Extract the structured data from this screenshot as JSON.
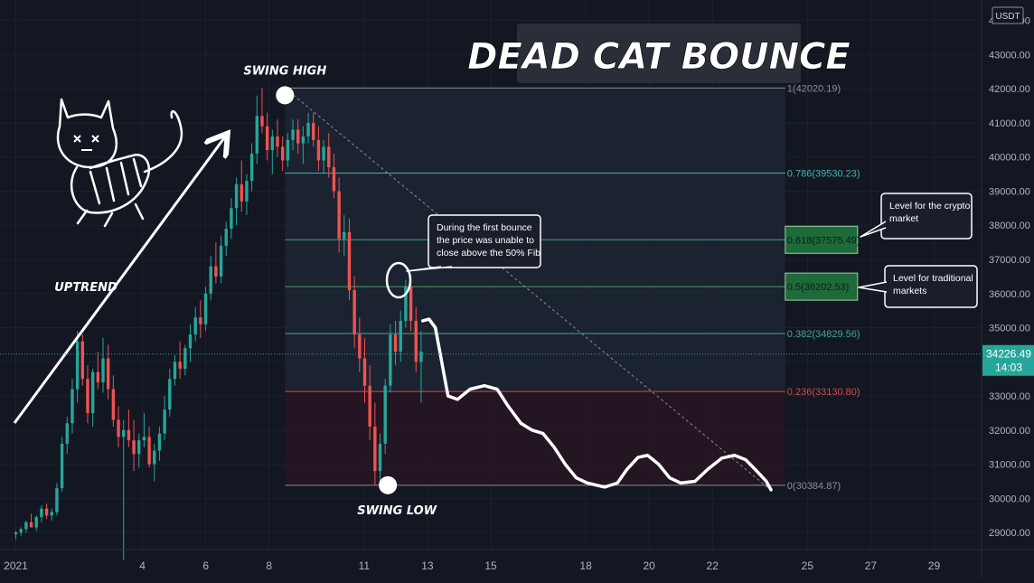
{
  "chart_data": {
    "type": "candlestick",
    "title": "DEAD CAT BOUNCE",
    "currency": "USDT",
    "y_axis": {
      "ticks": [
        29000,
        30000,
        31000,
        32000,
        33000,
        34000,
        35000,
        36000,
        37000,
        38000,
        39000,
        40000,
        41000,
        42000,
        43000,
        44000
      ],
      "tick_labels": [
        "29000.00",
        "30000.00",
        "31000.00",
        "32000.00",
        "33000.00",
        "34000.00",
        "35000.00",
        "36000.00",
        "37000.00",
        "38000.00",
        "39000.00",
        "40000.00",
        "41000.00",
        "42000.00",
        "43000.00",
        "44000.00"
      ],
      "ylim": [
        28500,
        44600
      ]
    },
    "x_axis": {
      "ticks": [
        0,
        4,
        6,
        8,
        11,
        13,
        15,
        18,
        20,
        22,
        25,
        27,
        29
      ],
      "tick_labels": [
        "2021",
        "4",
        "6",
        "8",
        "11",
        "13",
        "15",
        "18",
        "20",
        "22",
        "25",
        "27",
        "29"
      ],
      "xlim": [
        -0.5,
        30.5
      ]
    },
    "current_price": {
      "value": 34226.49,
      "label": "34226.49",
      "countdown": "14:03"
    },
    "fib_levels": [
      {
        "ratio": "1",
        "value": 42020.19,
        "label": "1(42020.19)",
        "color": "#8a8e99"
      },
      {
        "ratio": "0.786",
        "value": 39530.23,
        "label": "0.786(39530.23)",
        "color": "#3fb1b4"
      },
      {
        "ratio": "0.618",
        "value": 37575.49,
        "label": "0.618(37575.49)",
        "color": "#3ea57d",
        "boxed": true
      },
      {
        "ratio": "0.5",
        "value": 36202.53,
        "label": "0.5(36202.53)",
        "color": "#3ea55c",
        "boxed": true
      },
      {
        "ratio": "0.382",
        "value": 34829.56,
        "label": "0.382(34829.56)",
        "color": "#3fa99a"
      },
      {
        "ratio": "0.236",
        "value": 33130.8,
        "label": "0.236(33130.80)",
        "color": "#d94848"
      },
      {
        "ratio": "0",
        "value": 30384.87,
        "label": "0(30384.87)",
        "color": "#8a8e99"
      }
    ],
    "fib_range_x": [
      8.5,
      24.3
    ],
    "swing_high": {
      "x": 8.5,
      "y": 42020.19
    },
    "swing_low": {
      "x": 11.75,
      "y": 30384.87
    },
    "annotations": {
      "swing_high_label": "SWING HIGH",
      "swing_low_label": "SWING LOW",
      "uptrend_label": "UPTREND",
      "bounce_note": [
        "During the first bounce",
        "the price was unable to",
        "close above the 50% Fib"
      ],
      "crypto_note": [
        "Level for the crypto",
        "market"
      ],
      "traditional_note": [
        "Level for traditional",
        "markets"
      ]
    },
    "ohlc": [
      [
        28950,
        29050,
        28800,
        29000
      ],
      [
        29000,
        29150,
        28900,
        29100
      ],
      [
        29100,
        29350,
        29000,
        29300
      ],
      [
        29300,
        29550,
        29200,
        29150
      ],
      [
        29150,
        29500,
        29050,
        29450
      ],
      [
        29450,
        29800,
        29300,
        29700
      ],
      [
        29700,
        29850,
        29400,
        29500
      ],
      [
        29500,
        29700,
        29350,
        29600
      ],
      [
        29600,
        30450,
        29500,
        30300
      ],
      [
        30300,
        31800,
        30200,
        31600
      ],
      [
        31600,
        32400,
        31300,
        32200
      ],
      [
        32200,
        33500,
        31900,
        33200
      ],
      [
        33200,
        34900,
        32800,
        34600
      ],
      [
        34600,
        34800,
        33300,
        33500
      ],
      [
        33500,
        33900,
        32200,
        32500
      ],
      [
        32500,
        33800,
        32100,
        33700
      ],
      [
        33700,
        34300,
        33200,
        33400
      ],
      [
        33400,
        34700,
        33100,
        34100
      ],
      [
        34100,
        34500,
        32900,
        33200
      ],
      [
        33200,
        33600,
        32100,
        32300
      ],
      [
        32300,
        32700,
        31500,
        31800
      ],
      [
        31800,
        32300,
        28200,
        32000
      ],
      [
        32000,
        32600,
        31500,
        31700
      ],
      [
        31700,
        32300,
        30800,
        31300
      ],
      [
        31300,
        31900,
        30900,
        31700
      ],
      [
        31700,
        32500,
        31500,
        31800
      ],
      [
        31800,
        32100,
        30900,
        31000
      ],
      [
        31000,
        31600,
        30500,
        31400
      ],
      [
        31400,
        32100,
        31100,
        31900
      ],
      [
        31900,
        33000,
        31700,
        32600
      ],
      [
        32600,
        33800,
        32400,
        33500
      ],
      [
        33500,
        34200,
        33300,
        34000
      ],
      [
        34000,
        34600,
        33500,
        33800
      ],
      [
        33800,
        34500,
        33600,
        34400
      ],
      [
        34400,
        35100,
        34000,
        34800
      ],
      [
        34800,
        35600,
        34600,
        35300
      ],
      [
        35300,
        35800,
        34700,
        35100
      ],
      [
        35100,
        36200,
        34900,
        36000
      ],
      [
        36000,
        37100,
        35800,
        36800
      ],
      [
        36800,
        37500,
        36300,
        36500
      ],
      [
        36500,
        37700,
        36300,
        37400
      ],
      [
        37400,
        38100,
        37100,
        37900
      ],
      [
        37900,
        38800,
        37600,
        38500
      ],
      [
        38500,
        39400,
        38000,
        39200
      ],
      [
        39200,
        39900,
        38400,
        38700
      ],
      [
        38700,
        39500,
        38300,
        39300
      ],
      [
        39300,
        40400,
        39000,
        40100
      ],
      [
        40100,
        41800,
        39800,
        41200
      ],
      [
        41200,
        42020,
        40700,
        40900
      ],
      [
        40900,
        41300,
        39900,
        40200
      ],
      [
        40200,
        40800,
        39500,
        40600
      ],
      [
        40600,
        41100,
        40000,
        40300
      ],
      [
        40300,
        40600,
        39600,
        39900
      ],
      [
        39900,
        40700,
        39700,
        40500
      ],
      [
        40500,
        41100,
        40200,
        40800
      ],
      [
        40800,
        41100,
        40100,
        40400
      ],
      [
        40400,
        40900,
        39800,
        40600
      ],
      [
        40600,
        41300,
        40400,
        41000
      ],
      [
        41000,
        41300,
        40300,
        40500
      ],
      [
        40500,
        40900,
        39600,
        39900
      ],
      [
        39900,
        40500,
        39500,
        40300
      ],
      [
        40300,
        40700,
        39400,
        39700
      ],
      [
        39700,
        40100,
        38800,
        39000
      ],
      [
        39000,
        39400,
        37200,
        37600
      ],
      [
        37600,
        38300,
        37100,
        37800
      ],
      [
        37800,
        38200,
        35800,
        36100
      ],
      [
        36100,
        36500,
        34400,
        34800
      ],
      [
        34800,
        35300,
        33700,
        34100
      ],
      [
        34100,
        34700,
        32800,
        33300
      ],
      [
        33300,
        33900,
        31700,
        32100
      ],
      [
        32100,
        32800,
        30400,
        30800
      ],
      [
        30800,
        31900,
        30500,
        31600
      ],
      [
        31600,
        33500,
        31300,
        33300
      ],
      [
        33300,
        35100,
        33100,
        34800
      ],
      [
        34800,
        35200,
        33900,
        34300
      ],
      [
        34300,
        35500,
        34000,
        35200
      ],
      [
        35200,
        36400,
        35000,
        36200
      ],
      [
        36200,
        36500,
        34900,
        35200
      ],
      [
        35200,
        35600,
        33700,
        34000
      ],
      [
        34000,
        34900,
        32800,
        34300
      ]
    ],
    "projection": [
      [
        12.85,
        35200
      ],
      [
        13.05,
        35250
      ],
      [
        13.25,
        35000
      ],
      [
        13.45,
        34000
      ],
      [
        13.65,
        33000
      ],
      [
        13.95,
        32900
      ],
      [
        14.35,
        33200
      ],
      [
        14.8,
        33300
      ],
      [
        15.2,
        33200
      ],
      [
        15.55,
        32700
      ],
      [
        15.95,
        32200
      ],
      [
        16.3,
        32000
      ],
      [
        16.65,
        31900
      ],
      [
        17.0,
        31500
      ],
      [
        17.35,
        31000
      ],
      [
        17.7,
        30600
      ],
      [
        18.05,
        30450
      ],
      [
        18.6,
        30330
      ],
      [
        19.0,
        30450
      ],
      [
        19.3,
        30850
      ],
      [
        19.65,
        31200
      ],
      [
        19.95,
        31260
      ],
      [
        20.3,
        31000
      ],
      [
        20.65,
        30600
      ],
      [
        21.0,
        30450
      ],
      [
        21.45,
        30500
      ],
      [
        21.85,
        30850
      ],
      [
        22.3,
        31180
      ],
      [
        22.7,
        31260
      ],
      [
        23.05,
        31130
      ],
      [
        23.4,
        30800
      ],
      [
        23.7,
        30500
      ],
      [
        23.85,
        30250
      ]
    ]
  }
}
